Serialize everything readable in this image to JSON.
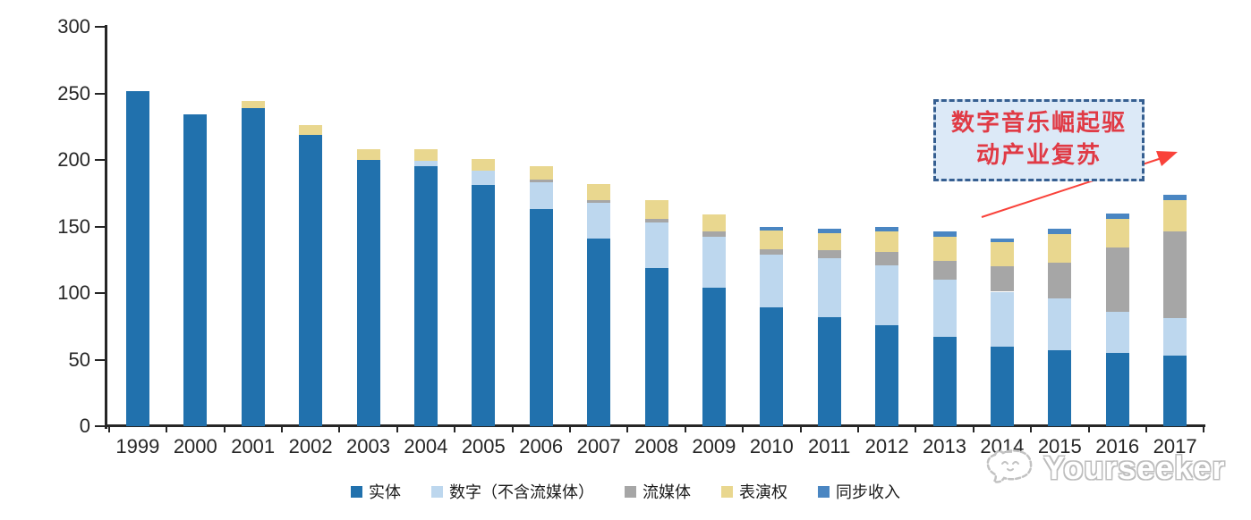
{
  "chart_data": {
    "type": "bar",
    "stacked": true,
    "title": "",
    "xlabel": "",
    "ylabel": "",
    "categories": [
      "1999",
      "2000",
      "2001",
      "2002",
      "2003",
      "2004",
      "2005",
      "2006",
      "2007",
      "2008",
      "2009",
      "2010",
      "2011",
      "2012",
      "2013",
      "2014",
      "2015",
      "2016",
      "2017"
    ],
    "series": [
      {
        "name": "实体",
        "color": "#2171ad",
        "values": [
          252,
          234,
          239,
          219,
          200,
          195,
          181,
          163,
          141,
          119,
          104,
          89,
          82,
          76,
          67,
          60,
          57,
          55,
          53
        ]
      },
      {
        "name": "数字（不含流媒体）",
        "color": "#bdd7ee",
        "values": [
          0,
          0,
          0,
          0,
          0,
          4,
          11,
          20,
          27,
          34,
          38,
          40,
          44,
          45,
          43,
          41,
          39,
          31,
          28
        ]
      },
      {
        "name": "流媒体",
        "color": "#a6a6a6",
        "values": [
          0,
          0,
          0,
          0,
          0,
          0,
          0,
          2,
          2,
          3,
          4,
          4,
          6,
          10,
          14,
          19,
          27,
          48,
          65
        ]
      },
      {
        "name": "表演权",
        "color": "#e9d78f",
        "values": [
          0,
          0,
          5,
          7,
          8,
          9,
          9,
          10,
          12,
          14,
          13,
          14,
          13,
          15,
          18,
          18,
          21,
          22,
          24
        ]
      },
      {
        "name": "同步收入",
        "color": "#4a86c2",
        "values": [
          0,
          0,
          0,
          0,
          0,
          0,
          0,
          0,
          0,
          0,
          0,
          3,
          3,
          4,
          4,
          3,
          4,
          4,
          4
        ]
      }
    ],
    "ylim": [
      0,
      300
    ],
    "ytick_step": 50,
    "yticks": [
      "0",
      "50",
      "100",
      "150",
      "200",
      "250",
      "300"
    ],
    "grid": false,
    "legend_position": "bottom"
  },
  "annotation": {
    "line1": "数字音乐崛起驱",
    "line2": "动产业复苏"
  },
  "watermark": {
    "text": "Yourseeker"
  },
  "colors": {
    "axis": "#262626",
    "annotation_text": "#e03a45",
    "annotation_box_fill": "#dce9f7",
    "annotation_box_border": "#365f91",
    "arrow": "#f9423a",
    "watermark": "#bdbdbd"
  }
}
